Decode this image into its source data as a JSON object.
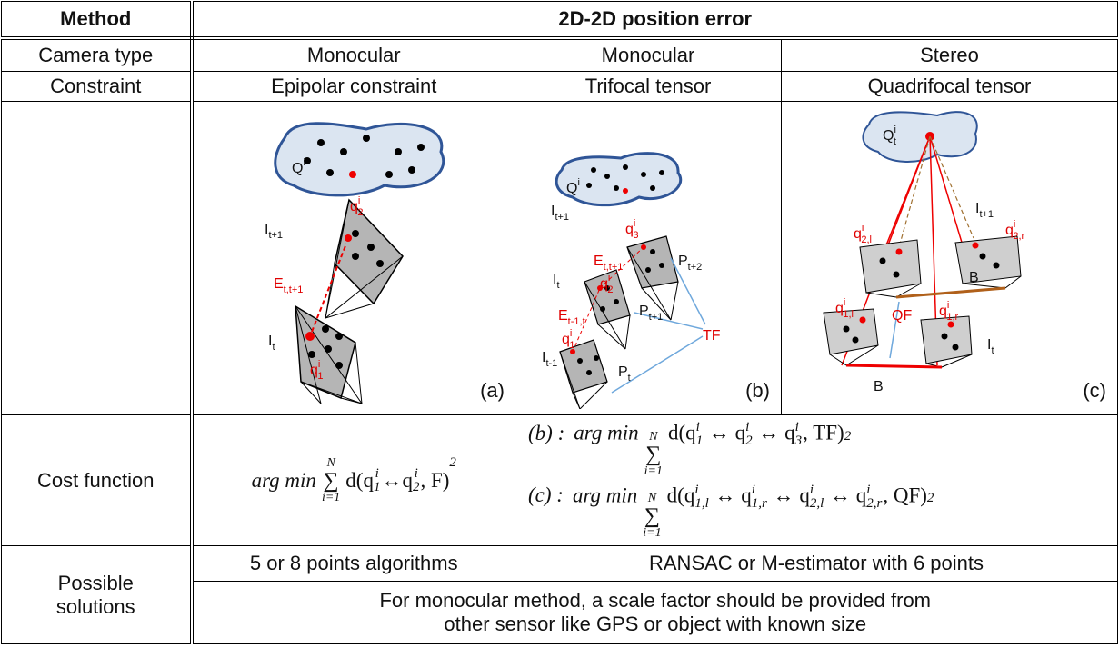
{
  "table": {
    "header": [
      "Method",
      "2D-2D position error"
    ],
    "rows": [
      [
        "Camera type",
        "Monocular",
        "Monocular",
        "Stereo"
      ],
      [
        "Constraint",
        "Epipolar constraint",
        "Trifocal tensor",
        "Quadrifocal tensor"
      ]
    ],
    "figures": [
      {
        "caption": "(a)",
        "labels": [
          {
            "text": "Q",
            "sup": "i"
          },
          {
            "text": "I",
            "sub": "t+1"
          },
          {
            "text": "q",
            "sup": "i",
            "sub": "2"
          },
          {
            "text": "E",
            "sub": "t,t+1"
          },
          {
            "text": "I",
            "sub": "t"
          },
          {
            "text": "q",
            "sup": "i",
            "sub": "1"
          }
        ]
      },
      {
        "caption": "(b)",
        "labels": [
          {
            "text": "Q",
            "sup": "i"
          },
          {
            "text": "I",
            "sub": "t+1"
          },
          {
            "text": "q",
            "sup": "i",
            "sub": "3"
          },
          {
            "text": "I",
            "sub": "t"
          },
          {
            "text": "E",
            "sub": "t,t+1"
          },
          {
            "text": "q",
            "sup": "i",
            "sub": "2"
          },
          {
            "text": "P",
            "sub": "t+2"
          },
          {
            "text": "E",
            "sub": "t-1,t"
          },
          {
            "text": "P",
            "sub": "t+1"
          },
          {
            "text": "q",
            "sup": "i",
            "sub": "1"
          },
          {
            "text": "TF"
          },
          {
            "text": "I",
            "sub": "t-1"
          },
          {
            "text": "P",
            "sub": "t"
          }
        ]
      },
      {
        "caption": "(c)",
        "labels": [
          {
            "text": "Q",
            "sup": "i",
            "sub": "t"
          },
          {
            "text": "I",
            "sub": "t+1"
          },
          {
            "text": "q",
            "sup": "i",
            "sub": "2,l"
          },
          {
            "text": "q",
            "sup": "i",
            "sub": "2,r"
          },
          {
            "text": "B"
          },
          {
            "text": "q",
            "sup": "i",
            "sub": "1,l"
          },
          {
            "text": "QF"
          },
          {
            "text": "q",
            "sup": "i",
            "sub": "1,r"
          },
          {
            "text": "I",
            "sub": "t"
          },
          {
            "text": "B"
          }
        ]
      }
    ],
    "cost_function": {
      "label": "Cost function",
      "formulas": [
        {
          "operator": "arg min",
          "sum": {
            "symbol": "∑",
            "upper": "N",
            "lower": "i=1"
          },
          "body": [
            {
              "text": "d("
            },
            {
              "text": "q",
              "sup": "i",
              "sub": "1"
            },
            {
              "text": " ↔ "
            },
            {
              "text": "q",
              "sup": "i",
              "sub": "2"
            },
            {
              "text": ", F)",
              "sup": "2"
            }
          ]
        },
        {
          "prefix": "(b) :",
          "operator": "arg min",
          "sum": {
            "symbol": "∑",
            "upper": "N",
            "lower": "i=1"
          },
          "body": [
            {
              "text": "d("
            },
            {
              "text": "q",
              "sup": "i",
              "sub": "1"
            },
            {
              "text": " ↔ "
            },
            {
              "text": "q",
              "sup": "i",
              "sub": "2"
            },
            {
              "text": " ↔ "
            },
            {
              "text": "q",
              "sup": "i",
              "sub": "3"
            },
            {
              "text": ", TF)",
              "sup": "2"
            }
          ]
        },
        {
          "prefix": "(c) :",
          "operator": "arg min",
          "sum": {
            "symbol": "∑",
            "upper": "N",
            "lower": "i=1"
          },
          "body": [
            {
              "text": "d("
            },
            {
              "text": "q",
              "sup": "i",
              "sub": "1,l"
            },
            {
              "text": " ↔ "
            },
            {
              "text": "q",
              "sup": "i",
              "sub": "1,r"
            },
            {
              "text": " ↔ "
            },
            {
              "text": "q",
              "sup": "i",
              "sub": "2,l"
            },
            {
              "text": " ↔ "
            },
            {
              "text": "q",
              "sup": "i",
              "sub": "2,r"
            },
            {
              "text": ", QF)",
              "sup": "2"
            }
          ]
        }
      ]
    },
    "possible_solutions": {
      "label": [
        "Possible",
        "solutions"
      ],
      "monocular": "5 or 8 points algorithms",
      "other": "RANSAC or M-estimator with 6 points",
      "note": [
        "For monocular method, a scale factor should be provided from",
        "other sensor like GPS or object with known size"
      ]
    }
  }
}
